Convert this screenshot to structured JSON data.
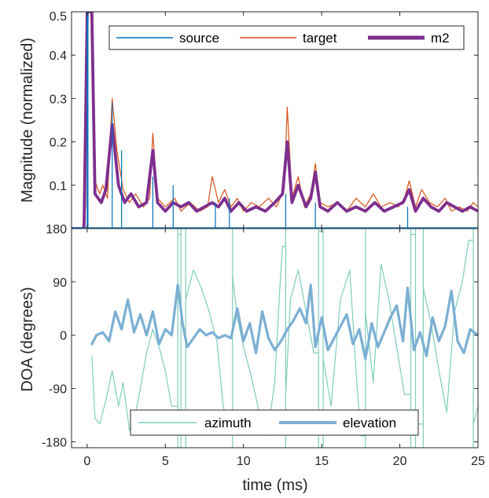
{
  "colors": {
    "source": "#0072BD",
    "target": "#D95319",
    "m2": "#7E2F8E",
    "azimuth": "#7FCDBB",
    "elevation": "#7BAFD4",
    "axis": "#262626"
  },
  "chart_data": [
    {
      "type": "line",
      "title": "",
      "xlabel": "",
      "ylabel": "Magnitude (normalized)",
      "xlim": [
        -1,
        25
      ],
      "ylim": [
        0,
        0.5
      ],
      "xticks": [
        0,
        5,
        10,
        15,
        20,
        25
      ],
      "yticks": [
        0.1,
        0.2,
        0.3,
        0.4,
        0.5
      ],
      "ytick_labels": [
        "0.1",
        "0.2",
        "0.3",
        "0.4",
        "0.5"
      ],
      "legend_position": "top",
      "series": [
        {
          "name": "source",
          "style": "spikes",
          "x": [
            0.0,
            0.05,
            1.6,
            2.2,
            4.2,
            5.5,
            8.2,
            9.1,
            12.7,
            14.6,
            20.5
          ],
          "y": [
            0.5,
            0.5,
            0.29,
            0.18,
            0.12,
            0.1,
            0.06,
            0.07,
            0.08,
            0.06,
            0.05
          ]
        },
        {
          "name": "target",
          "x": [
            -1.0,
            -0.3,
            -0.1,
            0.0,
            0.1,
            0.3,
            0.5,
            0.8,
            1.0,
            1.3,
            1.6,
            1.9,
            2.3,
            2.7,
            3.1,
            3.6,
            4.0,
            4.2,
            4.5,
            5.0,
            5.6,
            6.0,
            6.6,
            7.2,
            7.7,
            8.0,
            8.4,
            8.8,
            9.2,
            9.6,
            10.0,
            10.5,
            11.0,
            11.6,
            12.1,
            12.6,
            12.8,
            13.1,
            13.5,
            13.9,
            14.3,
            14.6,
            14.9,
            15.4,
            16.0,
            16.6,
            17.2,
            17.8,
            18.3,
            18.8,
            19.4,
            19.9,
            20.3,
            20.6,
            21.0,
            21.4,
            21.9,
            22.4,
            22.9,
            23.3,
            23.8,
            24.3,
            24.7,
            25.0
          ],
          "y": [
            0.0,
            0.0,
            0.05,
            0.5,
            0.5,
            0.5,
            0.11,
            0.08,
            0.1,
            0.07,
            0.3,
            0.18,
            0.09,
            0.06,
            0.08,
            0.05,
            0.07,
            0.22,
            0.07,
            0.05,
            0.07,
            0.04,
            0.06,
            0.04,
            0.05,
            0.12,
            0.06,
            0.09,
            0.05,
            0.07,
            0.04,
            0.06,
            0.05,
            0.07,
            0.05,
            0.09,
            0.28,
            0.07,
            0.12,
            0.05,
            0.08,
            0.15,
            0.06,
            0.05,
            0.06,
            0.04,
            0.07,
            0.05,
            0.08,
            0.05,
            0.06,
            0.05,
            0.07,
            0.11,
            0.05,
            0.09,
            0.06,
            0.05,
            0.07,
            0.04,
            0.05,
            0.04,
            0.06,
            0.05
          ]
        },
        {
          "name": "m2",
          "x": [
            -1.0,
            -0.2,
            0.0,
            0.15,
            0.3,
            0.5,
            0.9,
            1.2,
            1.6,
            2.0,
            2.4,
            2.8,
            3.3,
            3.8,
            4.2,
            4.5,
            5.0,
            5.5,
            6.0,
            6.5,
            7.0,
            7.5,
            8.0,
            8.4,
            8.8,
            9.2,
            9.7,
            10.2,
            10.8,
            11.4,
            12.0,
            12.5,
            12.8,
            13.1,
            13.5,
            14.0,
            14.3,
            14.6,
            14.9,
            15.4,
            16.0,
            16.6,
            17.2,
            17.8,
            18.4,
            19.0,
            19.6,
            20.2,
            20.6,
            21.0,
            21.5,
            22.0,
            22.5,
            23.0,
            23.5,
            24.0,
            24.5,
            25.0
          ],
          "y": [
            0.0,
            0.0,
            0.5,
            0.5,
            0.5,
            0.08,
            0.06,
            0.09,
            0.24,
            0.1,
            0.06,
            0.08,
            0.05,
            0.06,
            0.18,
            0.06,
            0.04,
            0.06,
            0.05,
            0.06,
            0.04,
            0.05,
            0.06,
            0.05,
            0.07,
            0.04,
            0.06,
            0.04,
            0.05,
            0.04,
            0.06,
            0.08,
            0.2,
            0.06,
            0.1,
            0.05,
            0.07,
            0.13,
            0.05,
            0.04,
            0.06,
            0.04,
            0.05,
            0.04,
            0.06,
            0.04,
            0.05,
            0.06,
            0.09,
            0.04,
            0.07,
            0.05,
            0.04,
            0.06,
            0.05,
            0.04,
            0.05,
            0.04
          ]
        }
      ]
    },
    {
      "type": "line",
      "title": "",
      "xlabel": "time (ms)",
      "ylabel": "DOA (degrees)",
      "xlim": [
        -1,
        25
      ],
      "ylim": [
        -190,
        180
      ],
      "xticks": [
        0,
        5,
        10,
        15,
        20,
        25
      ],
      "yticks": [
        -180,
        -90,
        0,
        90,
        180
      ],
      "legend_position": "bottom",
      "series": [
        {
          "name": "azimuth",
          "x": [
            0.3,
            0.5,
            0.8,
            1.2,
            1.6,
            2.0,
            2.3,
            2.7,
            3.0,
            3.4,
            3.8,
            4.2,
            4.6,
            5.0,
            5.4,
            5.8,
            6.0,
            6.3,
            6.8,
            7.3,
            7.8,
            8.3,
            8.7,
            9.1,
            9.3,
            9.6,
            10.0,
            10.5,
            11.0,
            11.5,
            12.0,
            12.3,
            12.5,
            12.7,
            13.0,
            13.5,
            14.0,
            14.5,
            14.8,
            15.1,
            15.6,
            16.2,
            16.8,
            17.2,
            17.5,
            17.8,
            18.3,
            18.8,
            19.3,
            19.8,
            20.3,
            20.7,
            21.0,
            21.5,
            22.0,
            22.5,
            23.0,
            23.5,
            24.0,
            24.4,
            24.7,
            25.0
          ],
          "y": [
            -35,
            -140,
            -150,
            -110,
            -60,
            -120,
            -80,
            -160,
            -145,
            -90,
            -30,
            10,
            -20,
            -60,
            -120,
            170,
            -150,
            60,
            110,
            80,
            40,
            -10,
            -120,
            -160,
            100,
            30,
            -20,
            -70,
            -130,
            -170,
            -80,
            70,
            150,
            -100,
            60,
            110,
            40,
            -30,
            175,
            -40,
            -120,
            60,
            110,
            -60,
            -170,
            40,
            -80,
            120,
            60,
            -20,
            -100,
            170,
            -150,
            80,
            20,
            -60,
            -130,
            40,
            90,
            160,
            -150,
            -120
          ]
        },
        {
          "name": "elevation",
          "x": [
            0.3,
            0.6,
            1.0,
            1.4,
            1.8,
            2.2,
            2.6,
            3.0,
            3.4,
            3.8,
            4.2,
            4.6,
            5.0,
            5.4,
            5.8,
            6.1,
            6.4,
            6.8,
            7.2,
            7.6,
            8.0,
            8.4,
            8.8,
            9.2,
            9.6,
            10.0,
            10.4,
            10.8,
            11.2,
            11.6,
            12.0,
            12.4,
            12.8,
            13.2,
            13.6,
            14.0,
            14.3,
            14.6,
            15.0,
            15.4,
            15.8,
            16.2,
            16.6,
            17.0,
            17.4,
            17.8,
            18.2,
            18.6,
            19.0,
            19.4,
            19.8,
            20.2,
            20.5,
            20.9,
            21.3,
            21.7,
            22.1,
            22.5,
            22.9,
            23.3,
            23.7,
            24.1,
            24.5,
            25.0
          ],
          "y": [
            -15,
            0,
            5,
            -10,
            40,
            10,
            60,
            5,
            35,
            0,
            40,
            -15,
            10,
            0,
            85,
            20,
            -20,
            -5,
            10,
            0,
            5,
            -5,
            0,
            -5,
            45,
            -10,
            20,
            -30,
            40,
            -5,
            -25,
            -10,
            10,
            25,
            45,
            20,
            85,
            -20,
            30,
            -25,
            -5,
            15,
            35,
            -15,
            10,
            -40,
            20,
            -20,
            5,
            30,
            50,
            -10,
            80,
            -25,
            5,
            -35,
            30,
            -10,
            15,
            75,
            -10,
            -30,
            10,
            0
          ]
        }
      ]
    }
  ]
}
